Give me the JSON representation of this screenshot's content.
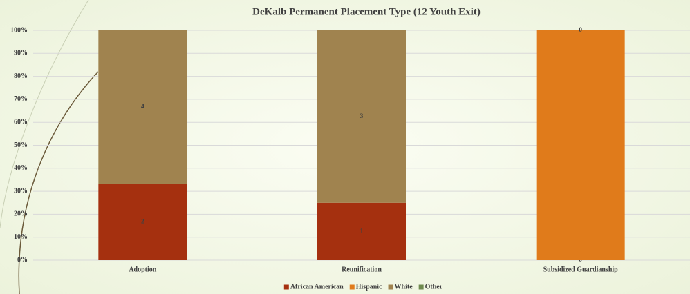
{
  "chart_data": {
    "type": "stacked_bar_percent",
    "title": "DeKalb Permanent Placement Type (12 Youth Exit)",
    "categories": [
      "Adoption",
      "Reunification",
      "Subsidized Guardianship"
    ],
    "series": [
      {
        "name": "African American",
        "color": "#a5300f",
        "values": [
          33.3,
          25,
          0
        ],
        "value_labels": [
          "2",
          "1",
          "0"
        ]
      },
      {
        "name": "Hispanic",
        "color": "#e07b1b",
        "values": [
          null,
          null,
          100
        ],
        "value_labels": [
          null,
          null,
          null
        ]
      },
      {
        "name": "White",
        "color": "#a0834f",
        "values": [
          66.7,
          75,
          0
        ],
        "value_labels": [
          "4",
          "3",
          "0"
        ]
      },
      {
        "name": "Other",
        "color": "#6f8b4f",
        "values": [
          null,
          null,
          null
        ],
        "value_labels": [
          null,
          null,
          null
        ]
      }
    ],
    "ylim": [
      0,
      100
    ],
    "yticks": [
      {
        "value": 0,
        "label": "0%"
      },
      {
        "value": 10,
        "label": "10%"
      },
      {
        "value": 20,
        "label": "20%"
      },
      {
        "value": 30,
        "label": "30%"
      },
      {
        "value": 40,
        "label": "40%"
      },
      {
        "value": 50,
        "label": "50%"
      },
      {
        "value": 60,
        "label": "60%"
      },
      {
        "value": 70,
        "label": "70%"
      },
      {
        "value": 80,
        "label": "80%"
      },
      {
        "value": 90,
        "label": "90%"
      },
      {
        "value": 100,
        "label": "100%"
      }
    ],
    "grid": true,
    "legend": "bottom"
  }
}
